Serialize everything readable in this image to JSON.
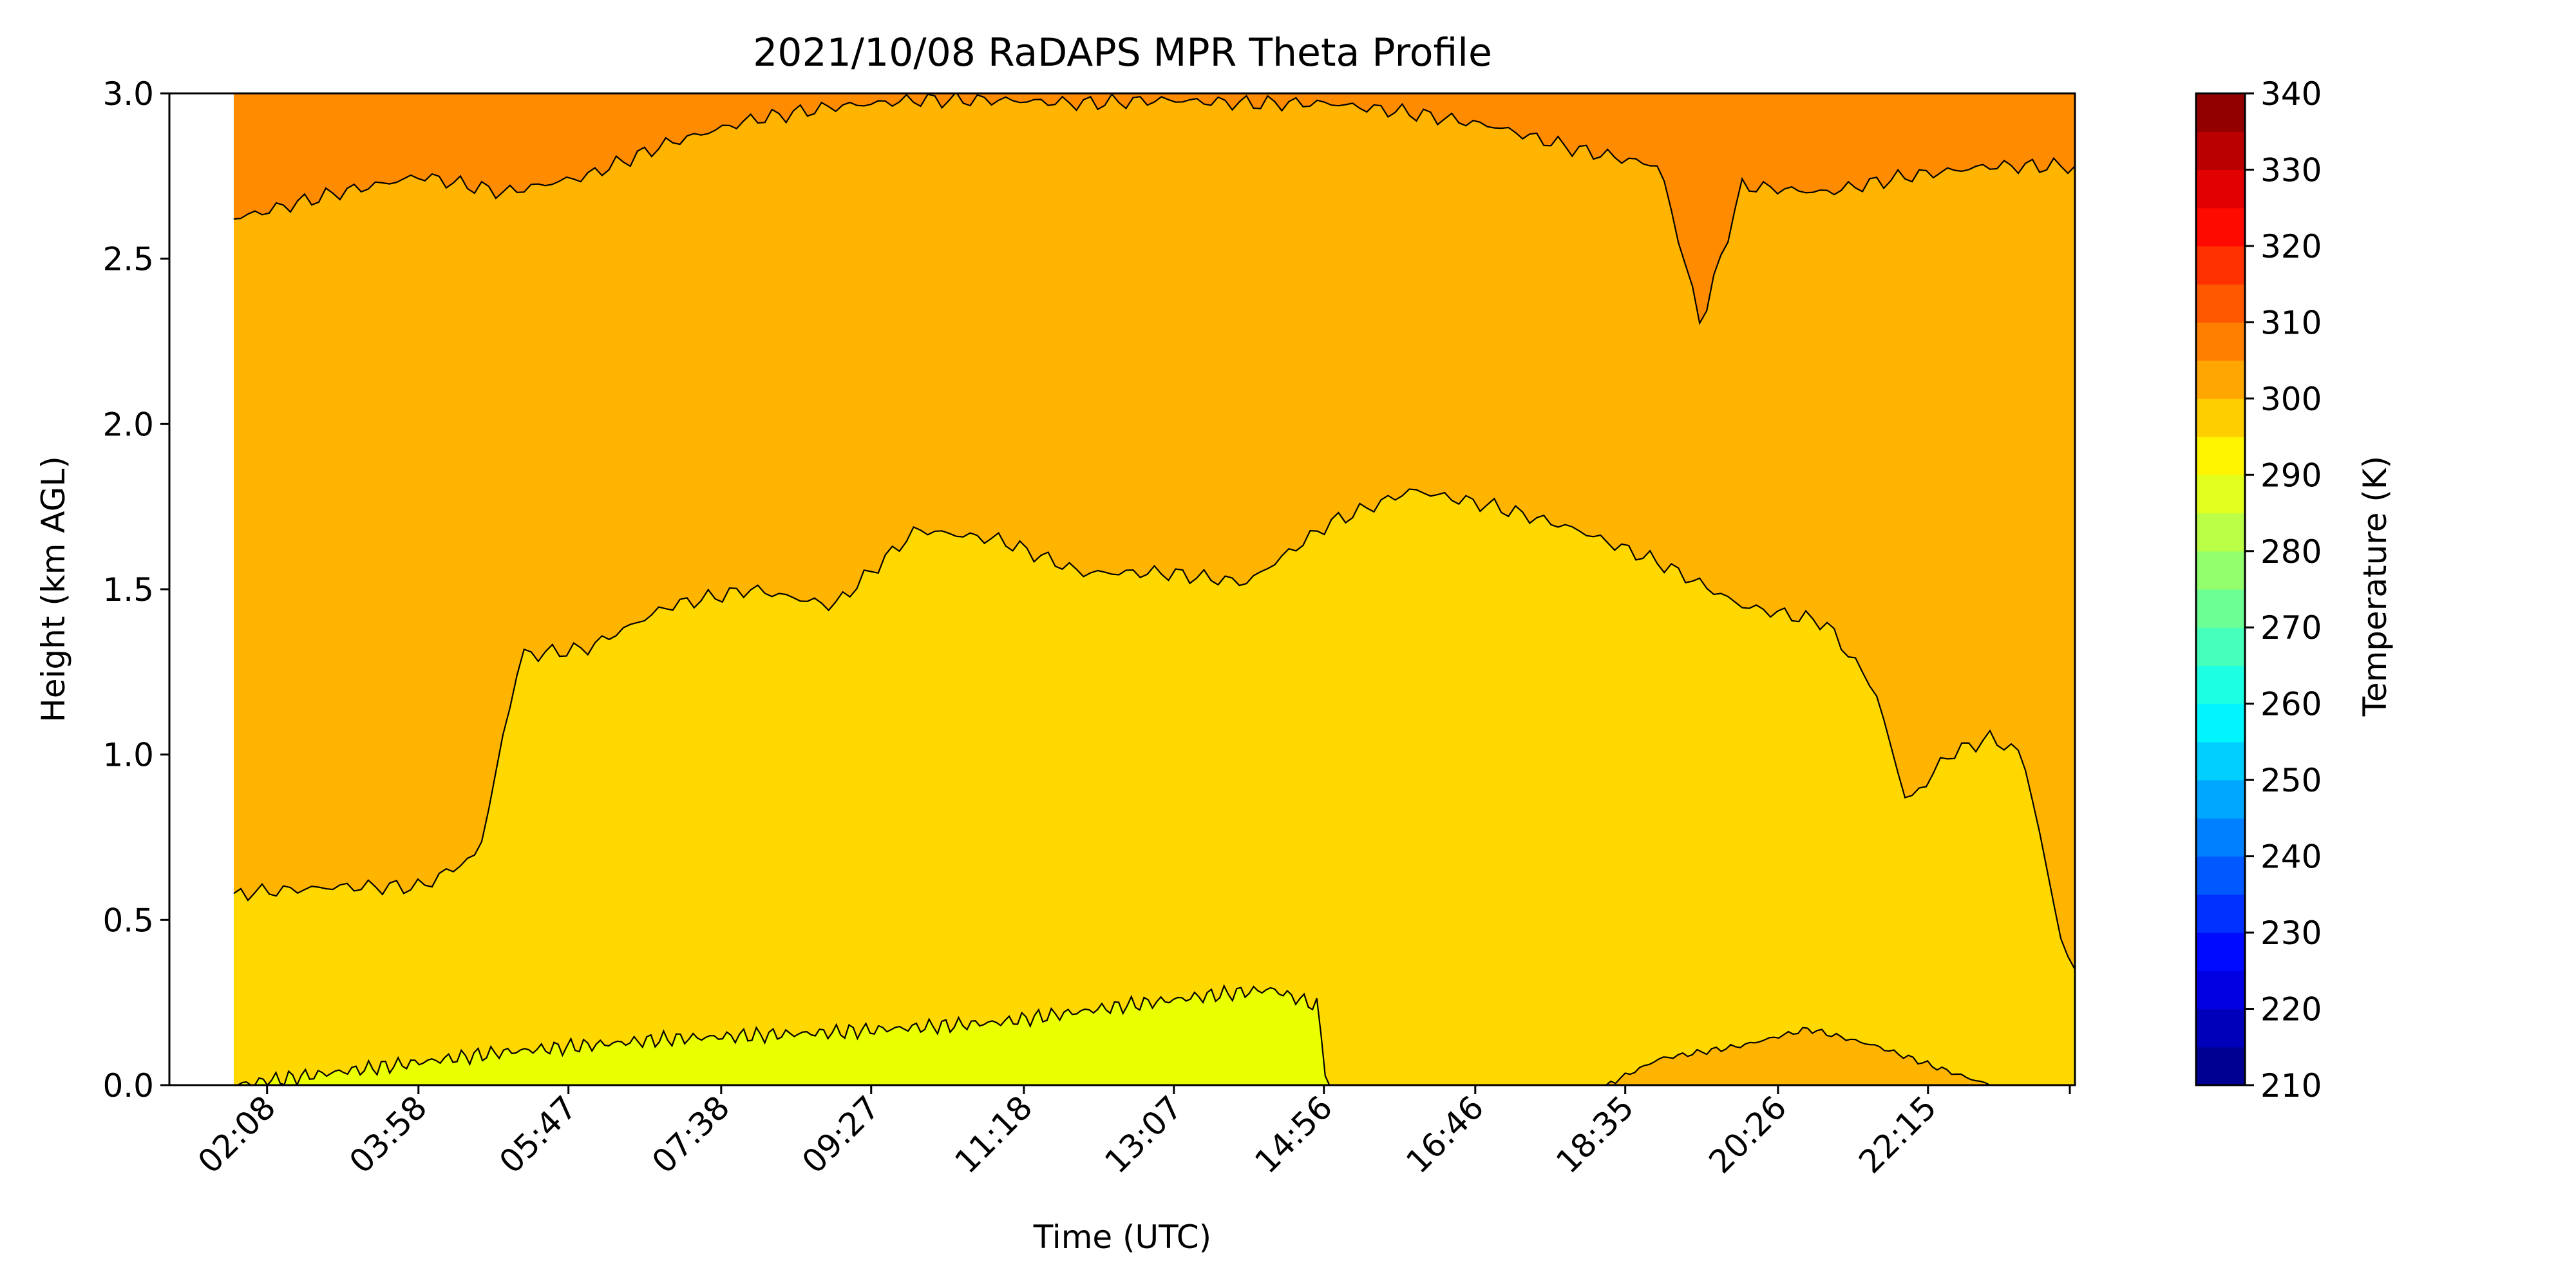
{
  "chart_data": {
    "type": "contour",
    "title": "2021/10/08 RaDAPS MPR Theta Profile",
    "xlabel": "Time (UTC)",
    "ylabel": "Height (km AGL)",
    "ylim": [
      0.0,
      3.0
    ],
    "xlim_hours": [
      0.95,
      24.03
    ],
    "x_ticks": [
      "02:08",
      "03:58",
      "05:47",
      "07:38",
      "09:27",
      "11:18",
      "13:07",
      "14:56",
      "16:46",
      "18:35",
      "20:26",
      "22:15"
    ],
    "y_ticks": [
      "0.0",
      "0.5",
      "1.0",
      "1.5",
      "2.0",
      "2.5",
      "3.0"
    ],
    "colorbar": {
      "label": "Temperature (K)",
      "min": 210,
      "max": 340,
      "ticks": [
        "210",
        "220",
        "230",
        "240",
        "250",
        "260",
        "270",
        "280",
        "290",
        "300",
        "310",
        "320",
        "330",
        "340"
      ],
      "colormap": "jet"
    },
    "bands": [
      {
        "range": [
          290,
          295
        ],
        "color": "#eaff00",
        "top_km": [
          [
            1.73,
            0.0
          ],
          [
            3,
            0.04
          ],
          [
            5,
            0.1
          ],
          [
            7,
            0.14
          ],
          [
            9,
            0.16
          ],
          [
            11,
            0.19
          ],
          [
            12.5,
            0.24
          ],
          [
            13.5,
            0.27
          ],
          [
            14.3,
            0.29
          ],
          [
            14.85,
            0.24
          ],
          [
            14.95,
            0.05
          ],
          [
            15.0,
            0.0
          ]
        ]
      },
      {
        "range": [
          295,
          300
        ],
        "color": "#ffd800",
        "top_km": [
          [
            1.73,
            0.58
          ],
          [
            3,
            0.6
          ],
          [
            4,
            0.6
          ],
          [
            4.7,
            0.7
          ],
          [
            5.2,
            1.3
          ],
          [
            6,
            1.32
          ],
          [
            7,
            1.45
          ],
          [
            8,
            1.5
          ],
          [
            9,
            1.45
          ],
          [
            10,
            1.68
          ],
          [
            11,
            1.65
          ],
          [
            12,
            1.55
          ],
          [
            13,
            1.55
          ],
          [
            14,
            1.52
          ],
          [
            15,
            1.7
          ],
          [
            16,
            1.8
          ],
          [
            17,
            1.75
          ],
          [
            18,
            1.68
          ],
          [
            19,
            1.58
          ],
          [
            20,
            1.45
          ],
          [
            21,
            1.4
          ],
          [
            21.6,
            1.2
          ],
          [
            22,
            0.85
          ],
          [
            22.5,
            1.0
          ],
          [
            23,
            1.05
          ],
          [
            23.4,
            1.0
          ],
          [
            23.9,
            0.4
          ],
          [
            24.03,
            0.35
          ]
        ]
      },
      {
        "range": [
          300,
          305
        ],
        "color": "#ffb400",
        "top_km": [
          [
            1.73,
            2.62
          ],
          [
            3,
            2.7
          ],
          [
            4,
            2.75
          ],
          [
            5,
            2.7
          ],
          [
            6,
            2.75
          ],
          [
            7,
            2.85
          ],
          [
            8,
            2.92
          ],
          [
            9,
            2.96
          ],
          [
            10,
            2.98
          ],
          [
            11,
            2.98
          ],
          [
            12,
            2.97
          ],
          [
            13,
            2.98
          ],
          [
            14,
            2.97
          ],
          [
            15,
            2.97
          ],
          [
            16,
            2.94
          ],
          [
            17,
            2.9
          ],
          [
            18,
            2.83
          ],
          [
            19,
            2.78
          ],
          [
            19.5,
            2.3
          ],
          [
            20,
            2.72
          ],
          [
            21,
            2.7
          ],
          [
            22,
            2.75
          ],
          [
            23,
            2.78
          ],
          [
            24.03,
            2.78
          ]
        ]
      },
      {
        "range": [
          305,
          310
        ],
        "color": "#ff8c00",
        "top_km": [
          [
            1.73,
            3.0
          ],
          [
            24.03,
            3.0
          ]
        ]
      }
    ],
    "warm_pocket": {
      "range": [
        300,
        305
      ],
      "color": "#ffb400",
      "top_km": [
        [
          18.35,
          0.0
        ],
        [
          19,
          0.08
        ],
        [
          20,
          0.12
        ],
        [
          20.8,
          0.17
        ],
        [
          21.6,
          0.12
        ],
        [
          22.4,
          0.05
        ],
        [
          23,
          0.0
        ]
      ]
    },
    "missing_data_before_hours": 1.73
  }
}
